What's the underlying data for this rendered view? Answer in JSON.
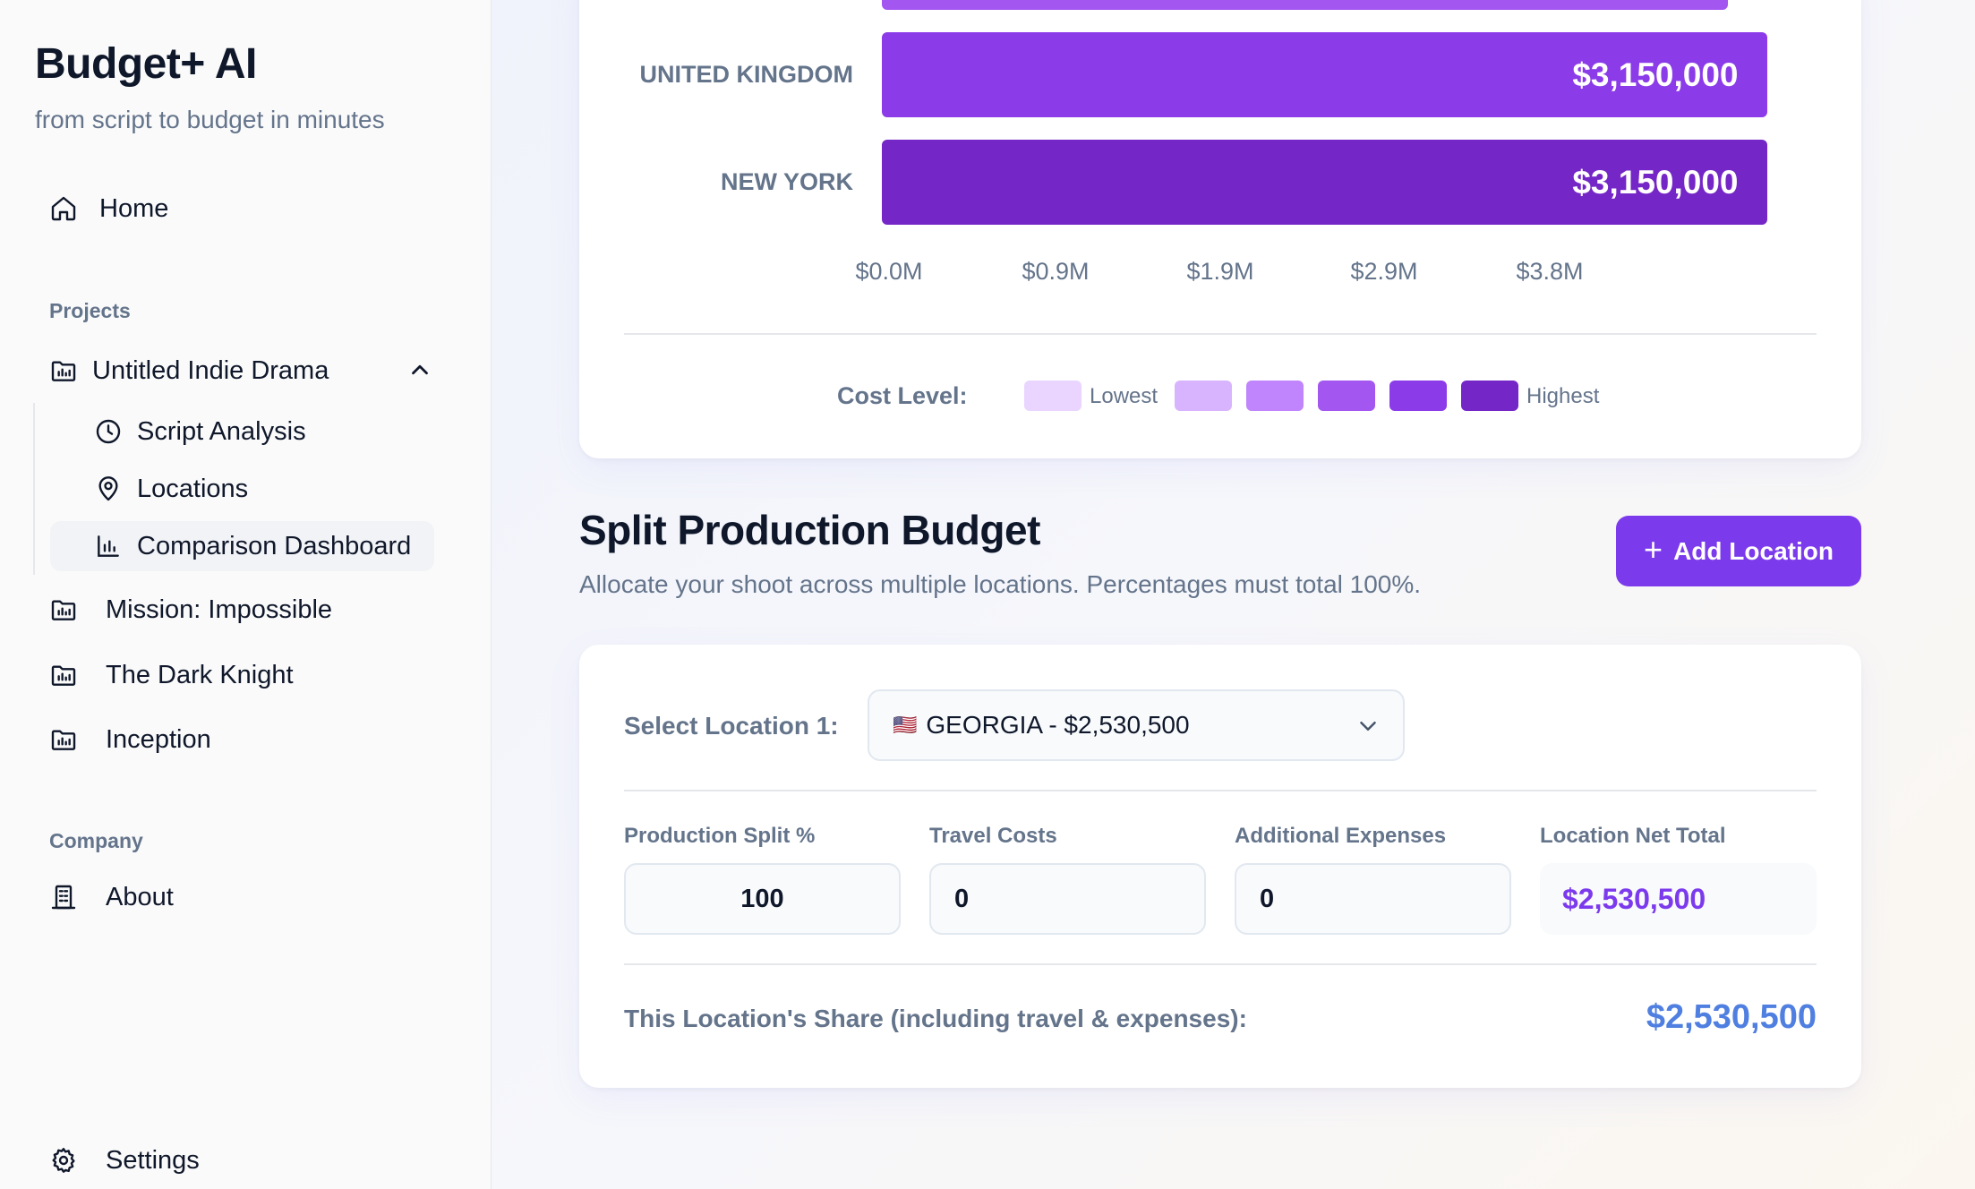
{
  "app": {
    "title": "Budget+ AI",
    "subtitle": "from script to budget in minutes"
  },
  "sidebar": {
    "home": {
      "label": "Home",
      "icon": "home-icon"
    },
    "projects_label": "Projects",
    "projects": [
      {
        "label": "Untitled Indie Drama",
        "icon": "folder-icon",
        "expanded": true
      },
      {
        "label": "Mission: Impossible",
        "icon": "folder-icon"
      },
      {
        "label": "The Dark Knight",
        "icon": "folder-icon"
      },
      {
        "label": "Inception",
        "icon": "folder-icon"
      }
    ],
    "subitems": [
      {
        "label": "Script Analysis",
        "icon": "clock-icon"
      },
      {
        "label": "Locations",
        "icon": "map-pin-icon"
      },
      {
        "label": "Comparison Dashboard",
        "icon": "bar-chart-icon",
        "active": true
      }
    ],
    "company_label": "Company",
    "about": {
      "label": "About",
      "icon": "building-icon"
    },
    "settings": {
      "label": "Settings",
      "icon": "gear-icon"
    }
  },
  "chart_data": {
    "type": "bar",
    "orientation": "horizontal",
    "categories": [
      "UNITED KINGDOM",
      "NEW YORK"
    ],
    "values": [
      3150000,
      3150000
    ],
    "value_labels": [
      "$3,150,000",
      "$3,150,000"
    ],
    "xticks": [
      "$0.0M",
      "$0.9M",
      "$1.9M",
      "$2.9M",
      "$3.8M"
    ],
    "xlim": [
      0,
      3800000
    ],
    "bar_colors": [
      "#8b3be8",
      "#7526c6"
    ],
    "legend": {
      "title": "Cost Level:",
      "low_label": "Lowest",
      "high_label": "Highest",
      "colors": [
        "#e9d5ff",
        "#d8b4fe",
        "#c084fc",
        "#a356f0",
        "#8b3be8",
        "#7526c6"
      ]
    }
  },
  "split": {
    "title": "Split Production Budget",
    "description": "Allocate your shoot across multiple locations. Percentages must total 100%.",
    "add_button": "Add Location",
    "select_label": "Select Location 1:",
    "select_flag": "🇺🇸",
    "select_value": "GEORGIA - $2,530,500",
    "fields": {
      "split_label": "Production Split %",
      "split_value": "100",
      "travel_label": "Travel Costs",
      "travel_value": "0",
      "expenses_label": "Additional Expenses",
      "expenses_value": "0",
      "net_label": "Location Net Total",
      "net_value": "$2,530,500"
    },
    "share_label": "This Location's Share (including travel & expenses):",
    "share_value": "$2,530,500"
  },
  "colors": {
    "accent": "#7c3aed",
    "share_blue": "#4f7fe0"
  }
}
